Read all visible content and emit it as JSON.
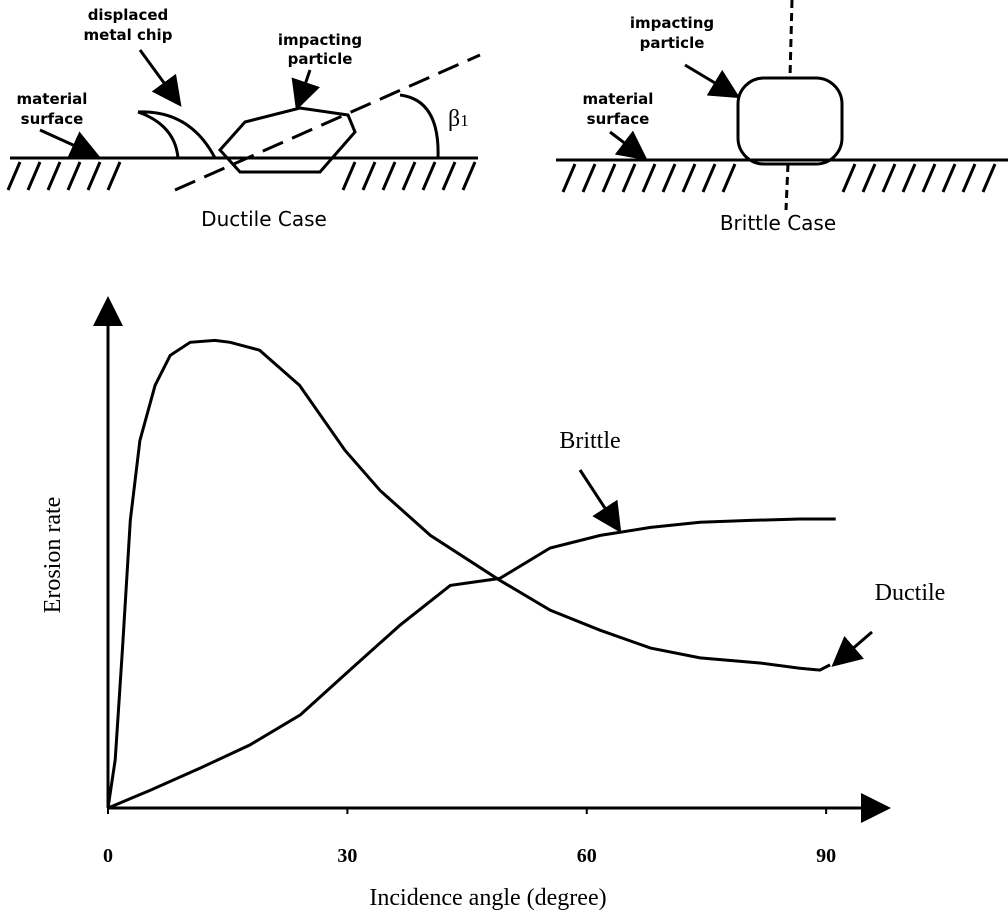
{
  "ductile_diagram": {
    "chip_label": [
      "displaced",
      "metal  chip"
    ],
    "particle_label": [
      "impacting",
      "particle"
    ],
    "surface_label": [
      "material",
      "surface"
    ],
    "angle_symbol": "β",
    "angle_subscript": "1",
    "caption": "Ductile Case"
  },
  "brittle_diagram": {
    "particle_label": [
      "impacting",
      "particle"
    ],
    "surface_label": [
      "material",
      "surface"
    ],
    "caption": "Brittle Case"
  },
  "chart_data": {
    "type": "line",
    "xlabel": "Incidence angle (degree)",
    "ylabel": "Erosion rate",
    "xlim": [
      0,
      97
    ],
    "ylim": [
      0,
      108
    ],
    "xticks": [
      0,
      30,
      60,
      90
    ],
    "series": [
      {
        "name": "Ductile",
        "color": "#000000",
        "x": [
          0,
          0.9,
          1.8,
          2.8,
          4,
          5.9,
          7.8,
          10.3,
          13.4,
          15.3,
          19,
          24,
          29.7,
          34.1,
          40.4,
          49.1,
          55.4,
          61.7,
          68,
          74.2,
          81.7,
          86.7,
          89.2,
          90.5
        ],
        "values": [
          0,
          10.3,
          33.8,
          61.5,
          78.6,
          90.4,
          96.8,
          99.6,
          100,
          99.6,
          97.9,
          90.4,
          76.5,
          67.9,
          58.3,
          48.7,
          42.3,
          38,
          34.2,
          32.1,
          31,
          29.9,
          29.5,
          30.6
        ]
      },
      {
        "name": "Brittle",
        "color": "#000000",
        "x": [
          0,
          5.3,
          11.5,
          17.8,
          24.1,
          30.3,
          36.6,
          42.9,
          49.1,
          55.4,
          61.7,
          68,
          74.2,
          80.5,
          86.7,
          91.2
        ],
        "values": [
          0,
          3.8,
          8.5,
          13.5,
          19.9,
          29.5,
          39.1,
          47.6,
          49.1,
          55.6,
          58.3,
          60,
          61.1,
          61.5,
          61.8,
          61.8
        ]
      }
    ]
  }
}
